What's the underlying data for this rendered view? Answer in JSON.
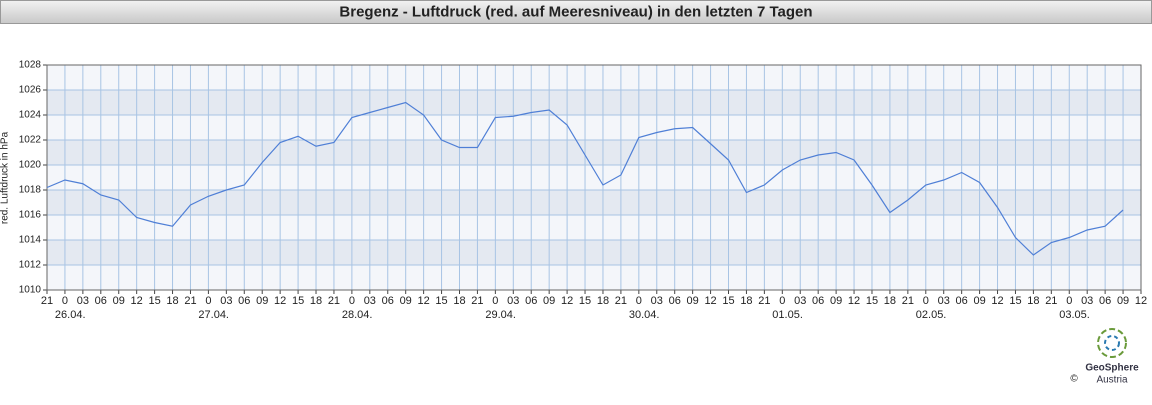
{
  "chart_data": {
    "type": "line",
    "title": "Bregenz - Luftdruck (red. auf Meeresniveau) in den letzten 7 Tagen",
    "y_label": "red. Luftdruck in hPa",
    "categories": [
      "21",
      "0",
      "03",
      "06",
      "09",
      "12",
      "15",
      "18",
      "21",
      "0",
      "03",
      "06",
      "09",
      "12",
      "15",
      "18",
      "21",
      "0",
      "03",
      "06",
      "09",
      "12",
      "15",
      "18",
      "21",
      "0",
      "03",
      "06",
      "09",
      "12",
      "15",
      "18",
      "21",
      "0",
      "03",
      "06",
      "09",
      "12",
      "15",
      "18",
      "21",
      "0",
      "03",
      "06",
      "09",
      "12",
      "15",
      "18",
      "21",
      "0",
      "03",
      "06",
      "09",
      "12",
      "15",
      "18",
      "21",
      "0",
      "03",
      "06",
      "09",
      "12"
    ],
    "dates": [
      null,
      "26.04.",
      null,
      null,
      null,
      null,
      null,
      null,
      null,
      "27.04.",
      null,
      null,
      null,
      null,
      null,
      null,
      null,
      "28.04.",
      null,
      null,
      null,
      null,
      null,
      null,
      null,
      "29.04.",
      null,
      null,
      null,
      null,
      null,
      null,
      null,
      "30.04.",
      null,
      null,
      null,
      null,
      null,
      null,
      null,
      "01.05.",
      null,
      null,
      null,
      null,
      null,
      null,
      null,
      "02.05.",
      null,
      null,
      null,
      null,
      null,
      null,
      null,
      "03.05.",
      null,
      null,
      null,
      null
    ],
    "values": [
      1018.2,
      1018.8,
      1018.5,
      1017.6,
      1017.2,
      1015.8,
      1015.4,
      1015.1,
      1016.8,
      1017.5,
      1018,
      1018.4,
      1020.2,
      1021.8,
      1022.3,
      1021.5,
      1021.8,
      1023.8,
      1024.2,
      1024.6,
      1025,
      1024,
      1022,
      1021.4,
      1021.4,
      1023.8,
      1023.9,
      1024.2,
      1024.4,
      1023.2,
      1020.8,
      1018.4,
      1019.2,
      1022.2,
      1022.6,
      1022.9,
      1023,
      1021.7,
      1020.4,
      1017.8,
      1018.4,
      1019.6,
      1020.4,
      1020.8,
      1021,
      1020.4,
      1018.4,
      1016.2,
      1017.2,
      1018.4,
      1018.8,
      1019.4,
      1018.6,
      1016.6,
      1014.2,
      1012.8,
      1013.8,
      1014.2,
      1014.8,
      1015.1,
      1016.4,
      null
    ],
    "color": "#4f7fd6",
    "ylim": [
      1010,
      1028
    ],
    "yticks": [
      1010,
      1012,
      1014,
      1016,
      1018,
      1020,
      1022,
      1024,
      1026,
      1028
    ],
    "grid": true,
    "logo": {
      "name": "GeoSphere",
      "sub": "Austria",
      "copyright": "©"
    }
  }
}
